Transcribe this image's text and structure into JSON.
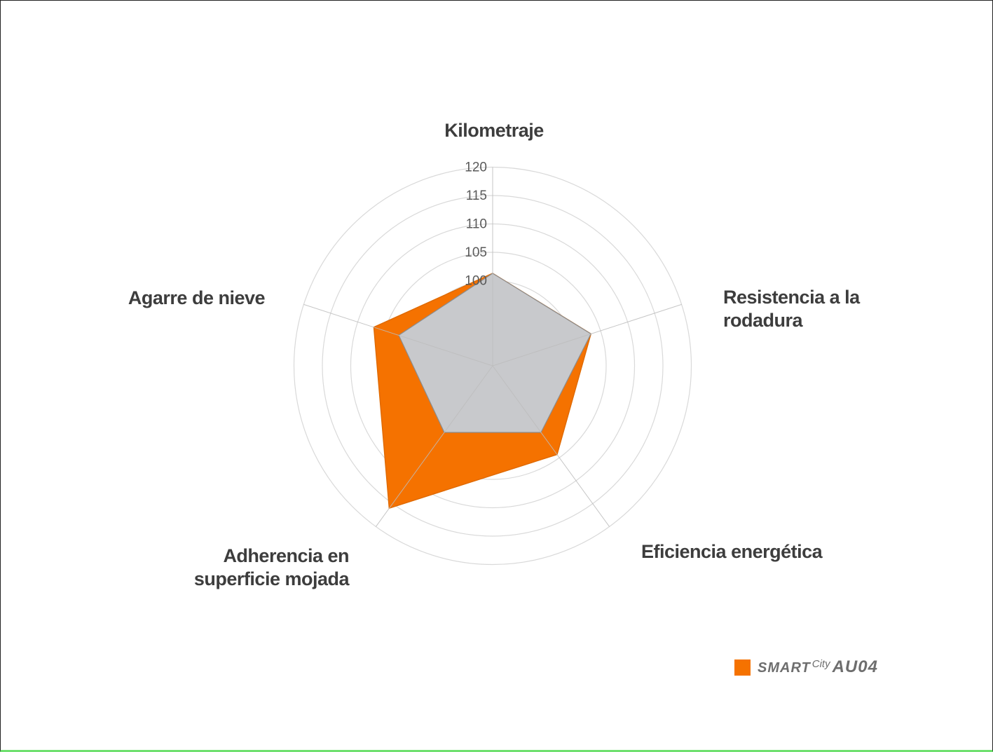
{
  "chart_data": {
    "type": "radar",
    "axes": [
      "Kilometraje",
      "Resistencia a la rodadura",
      "Eficiencia energética",
      "Adherencia en superficie mojada",
      "Agarre de nieve"
    ],
    "axis_labels_display": [
      "Kilometraje",
      "Resistencia a la\nrodadura",
      "Eficiencia energética",
      "Adherencia en\nsuperficie mojada",
      "Agarre de nieve"
    ],
    "rlim": [
      85,
      123
    ],
    "ring_values": [
      90,
      95,
      100,
      105,
      110,
      115,
      120
    ],
    "tick_labels": [
      "100",
      "105",
      "110",
      "115",
      "120"
    ],
    "tick_values": [
      100,
      105,
      110,
      115,
      120
    ],
    "grid": true,
    "legend_position": "bottom-right",
    "series": [
      {
        "name": "SMART City AU04",
        "color": "#f57200",
        "values": [
          101.3,
          103.2,
          104.3,
          116.0,
          107.0
        ]
      },
      {
        "color": "#c8c9cc",
        "values": [
          101.3,
          103.2,
          99.5,
          99.5,
          102.4
        ]
      }
    ]
  },
  "legend": {
    "brand": "SMART",
    "sub": "City",
    "model": "AU04"
  },
  "colors": {
    "accent": "#f57200",
    "reference_fill": "#c8c9cc",
    "grid": "#d9d9d9",
    "label_text": "#3d3d3d"
  }
}
